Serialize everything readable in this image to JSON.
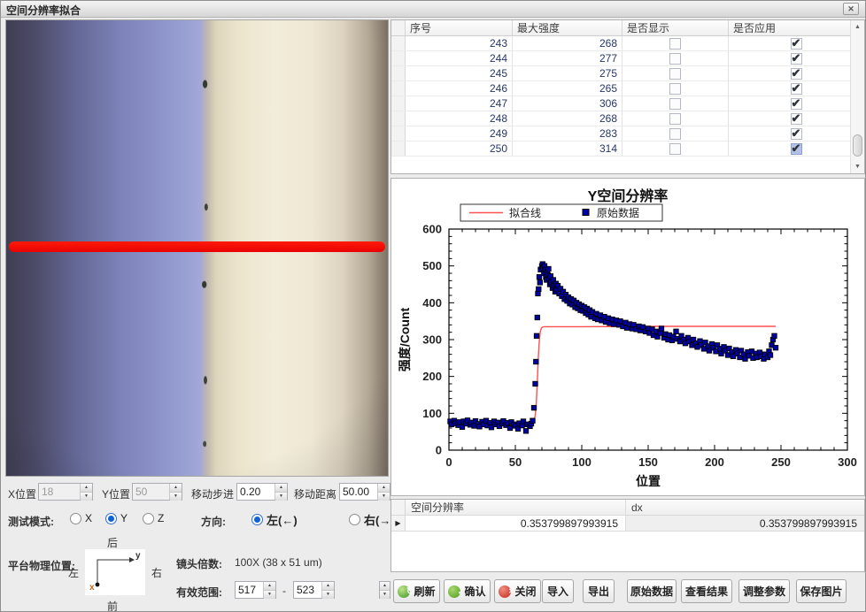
{
  "window": {
    "title": "空间分辨率拟合",
    "close_glyph": "✕"
  },
  "top_table": {
    "columns": [
      "序号",
      "最大强度",
      "是否显示",
      "是否应用"
    ],
    "rows": [
      {
        "index": 243,
        "max_intensity": 268,
        "display": false,
        "apply": true
      },
      {
        "index": 244,
        "max_intensity": 277,
        "display": false,
        "apply": true
      },
      {
        "index": 245,
        "max_intensity": 275,
        "display": false,
        "apply": true
      },
      {
        "index": 246,
        "max_intensity": 265,
        "display": false,
        "apply": true
      },
      {
        "index": 247,
        "max_intensity": 306,
        "display": false,
        "apply": true
      },
      {
        "index": 248,
        "max_intensity": 268,
        "display": false,
        "apply": true
      },
      {
        "index": 249,
        "max_intensity": 283,
        "display": false,
        "apply": true
      },
      {
        "index": 250,
        "max_intensity": 314,
        "display": false,
        "apply": true,
        "selected": true
      }
    ]
  },
  "chart_data": {
    "type": "scatter",
    "title": "Y空间分辨率",
    "xlabel": "位置",
    "ylabel": "强度/Count",
    "xlim": [
      0,
      300
    ],
    "ylim": [
      0,
      600
    ],
    "xticks": [
      0,
      50,
      100,
      150,
      200,
      250,
      300
    ],
    "yticks": [
      0,
      100,
      200,
      300,
      400,
      500,
      600
    ],
    "minor_x": 10,
    "minor_y": 20,
    "grid": false,
    "legend_position": "top-left",
    "legend": [
      {
        "label": "拟合线",
        "type": "line",
        "color": "#ff5151"
      },
      {
        "label": "原始数据",
        "type": "square",
        "color": "#0000a8"
      }
    ],
    "fit_color": "#ff5151",
    "point_color": "#0000a8",
    "fit_line": [
      [
        0,
        67
      ],
      [
        30,
        67
      ],
      [
        50,
        67
      ],
      [
        58,
        67
      ],
      [
        61,
        68
      ],
      [
        63,
        71
      ],
      [
        64,
        78
      ],
      [
        65,
        95
      ],
      [
        65.8,
        130
      ],
      [
        66.5,
        185
      ],
      [
        67.2,
        245
      ],
      [
        68,
        295
      ],
      [
        68.8,
        322
      ],
      [
        69.6,
        331
      ],
      [
        70.5,
        334
      ],
      [
        72,
        335
      ],
      [
        100,
        335
      ],
      [
        150,
        336
      ],
      [
        200,
        336
      ],
      [
        246,
        336
      ]
    ],
    "scatter": [
      [
        1,
        78
      ],
      [
        2,
        70
      ],
      [
        4,
        80
      ],
      [
        5,
        73
      ],
      [
        7,
        68
      ],
      [
        8,
        76
      ],
      [
        10,
        63
      ],
      [
        11,
        78
      ],
      [
        13,
        72
      ],
      [
        14,
        81
      ],
      [
        16,
        69
      ],
      [
        17,
        75
      ],
      [
        19,
        66
      ],
      [
        20,
        79
      ],
      [
        22,
        71
      ],
      [
        23,
        64
      ],
      [
        25,
        77
      ],
      [
        26,
        70
      ],
      [
        28,
        80
      ],
      [
        29,
        67
      ],
      [
        31,
        74
      ],
      [
        32,
        62
      ],
      [
        34,
        78
      ],
      [
        35,
        70
      ],
      [
        37,
        75
      ],
      [
        38,
        65
      ],
      [
        40,
        72
      ],
      [
        41,
        79
      ],
      [
        43,
        68
      ],
      [
        44,
        74
      ],
      [
        46,
        60
      ],
      [
        47,
        76
      ],
      [
        49,
        70
      ],
      [
        50,
        66
      ],
      [
        52,
        58
      ],
      [
        53,
        73
      ],
      [
        55,
        67
      ],
      [
        56,
        78
      ],
      [
        58,
        52
      ],
      [
        59,
        70
      ],
      [
        61,
        65
      ],
      [
        62,
        72
      ],
      [
        63,
        80
      ],
      [
        64,
        115
      ],
      [
        65,
        180
      ],
      [
        65.5,
        240
      ],
      [
        66,
        310
      ],
      [
        66.5,
        360
      ],
      [
        67,
        425
      ],
      [
        67.5,
        437
      ],
      [
        68,
        470
      ],
      [
        68.5,
        455
      ],
      [
        69,
        490
      ],
      [
        70,
        500
      ],
      [
        70.5,
        505
      ],
      [
        71,
        495
      ],
      [
        71.5,
        480
      ],
      [
        72,
        500
      ],
      [
        72.5,
        490
      ],
      [
        73,
        470
      ],
      [
        73.5,
        462
      ],
      [
        74,
        485
      ],
      [
        74.5,
        475
      ],
      [
        75,
        492
      ],
      [
        75.5,
        466
      ],
      [
        76,
        450
      ],
      [
        76.5,
        472
      ],
      [
        77,
        456
      ],
      [
        78,
        440
      ],
      [
        78.5,
        462
      ],
      [
        79,
        446
      ],
      [
        80,
        430
      ],
      [
        80.5,
        452
      ],
      [
        81,
        436
      ],
      [
        82,
        446
      ],
      [
        83,
        425
      ],
      [
        84,
        438
      ],
      [
        85,
        418
      ],
      [
        86,
        430
      ],
      [
        87,
        410
      ],
      [
        88,
        422
      ],
      [
        89,
        405
      ],
      [
        90,
        415
      ],
      [
        91,
        398
      ],
      [
        92,
        410
      ],
      [
        93,
        395
      ],
      [
        94,
        406
      ],
      [
        95,
        388
      ],
      [
        96,
        400
      ],
      [
        97,
        385
      ],
      [
        98,
        396
      ],
      [
        99,
        380
      ],
      [
        100,
        392
      ],
      [
        101,
        378
      ],
      [
        102,
        388
      ],
      [
        103,
        372
      ],
      [
        104,
        384
      ],
      [
        105,
        368
      ],
      [
        106,
        380
      ],
      [
        107,
        362
      ],
      [
        108,
        375
      ],
      [
        110,
        358
      ],
      [
        111,
        370
      ],
      [
        112,
        355
      ],
      [
        114,
        366
      ],
      [
        115,
        352
      ],
      [
        117,
        362
      ],
      [
        118,
        348
      ],
      [
        120,
        358
      ],
      [
        121,
        345
      ],
      [
        123,
        355
      ],
      [
        124,
        342
      ],
      [
        126,
        352
      ],
      [
        128,
        340
      ],
      [
        129,
        350
      ],
      [
        131,
        336
      ],
      [
        133,
        346
      ],
      [
        134,
        332
      ],
      [
        136,
        342
      ],
      [
        138,
        330
      ],
      [
        139,
        340
      ],
      [
        141,
        328
      ],
      [
        143,
        336
      ],
      [
        144,
        325
      ],
      [
        146,
        334
      ],
      [
        148,
        322
      ],
      [
        150,
        330
      ],
      [
        151,
        318
      ],
      [
        153,
        328
      ],
      [
        154,
        312
      ],
      [
        156,
        322
      ],
      [
        157,
        308
      ],
      [
        159,
        318
      ],
      [
        160,
        330
      ],
      [
        162,
        305
      ],
      [
        163,
        315
      ],
      [
        165,
        300
      ],
      [
        166,
        312
      ],
      [
        168,
        298
      ],
      [
        169,
        308
      ],
      [
        171,
        322
      ],
      [
        172,
        302
      ],
      [
        174,
        295
      ],
      [
        175,
        310
      ],
      [
        177,
        300
      ],
      [
        178,
        290
      ],
      [
        180,
        305
      ],
      [
        181,
        295
      ],
      [
        183,
        285
      ],
      [
        184,
        300
      ],
      [
        186,
        290
      ],
      [
        187,
        280
      ],
      [
        189,
        296
      ],
      [
        190,
        285
      ],
      [
        192,
        275
      ],
      [
        193,
        292
      ],
      [
        195,
        282
      ],
      [
        196,
        270
      ],
      [
        198,
        288
      ],
      [
        199,
        278
      ],
      [
        201,
        268
      ],
      [
        202,
        285
      ],
      [
        204,
        275
      ],
      [
        205,
        262
      ],
      [
        207,
        280
      ],
      [
        208,
        270
      ],
      [
        210,
        258
      ],
      [
        211,
        276
      ],
      [
        213,
        266
      ],
      [
        214,
        255
      ],
      [
        216,
        272
      ],
      [
        217,
        262
      ],
      [
        219,
        252
      ],
      [
        220,
        270
      ],
      [
        222,
        260
      ],
      [
        223,
        248
      ],
      [
        225,
        266
      ],
      [
        226,
        256
      ],
      [
        228,
        268
      ],
      [
        229,
        250
      ],
      [
        231,
        262
      ],
      [
        232,
        252
      ],
      [
        234,
        265
      ],
      [
        235,
        255
      ],
      [
        237,
        248
      ],
      [
        238,
        260
      ],
      [
        240,
        252
      ],
      [
        241,
        268
      ],
      [
        242,
        258
      ],
      [
        243,
        285
      ],
      [
        244,
        300
      ],
      [
        245,
        310
      ],
      [
        246,
        278
      ]
    ]
  },
  "controls": {
    "x_pos_label": "X位置",
    "x_pos_value": "18",
    "y_pos_label": "Y位置",
    "y_pos_value": "50",
    "step_label": "移动步进",
    "step_value": "0.20",
    "distance_label": "移动距离",
    "distance_value": "50.00",
    "test_mode_label": "测试模式:",
    "test_modes": [
      "X",
      "Y",
      "Z"
    ],
    "test_mode_selected": "Y",
    "direction_label": "方向:",
    "directions": [
      "左(←)",
      "右(→)"
    ],
    "direction_selected": "左(←)",
    "stage_label": "平台物理位置:",
    "stage_back": "后",
    "stage_front": "前",
    "stage_left": "左",
    "stage_right": "右",
    "stage_x": "x",
    "stage_y": "y",
    "lens_label": "镜头倍数:",
    "lens_value": "100X (38 x 51 um)",
    "range_label": "有效范围:",
    "range_from": "517",
    "range_sep": "-",
    "range_to": "523"
  },
  "result_table": {
    "columns": [
      "空间分辨率",
      "dx"
    ],
    "values": [
      "0.353799897993915",
      "0.353799897993915"
    ],
    "row_marker": "▶"
  },
  "buttons": [
    {
      "name": "refresh-button",
      "label": "刷新",
      "icon": "refresh"
    },
    {
      "name": "confirm-button",
      "label": "确认",
      "icon": "confirm"
    },
    {
      "name": "close-button",
      "label": "关闭",
      "icon": "closec"
    },
    {
      "name": "import-button",
      "label": "导入"
    },
    {
      "name": "export-button",
      "label": "导出"
    },
    {
      "name": "raw-data-button",
      "label": "原始数据"
    },
    {
      "name": "view-results-button",
      "label": "查看结果"
    },
    {
      "name": "adjust-params-button",
      "label": "调整参数"
    },
    {
      "name": "save-image-button",
      "label": "保存图片"
    }
  ]
}
